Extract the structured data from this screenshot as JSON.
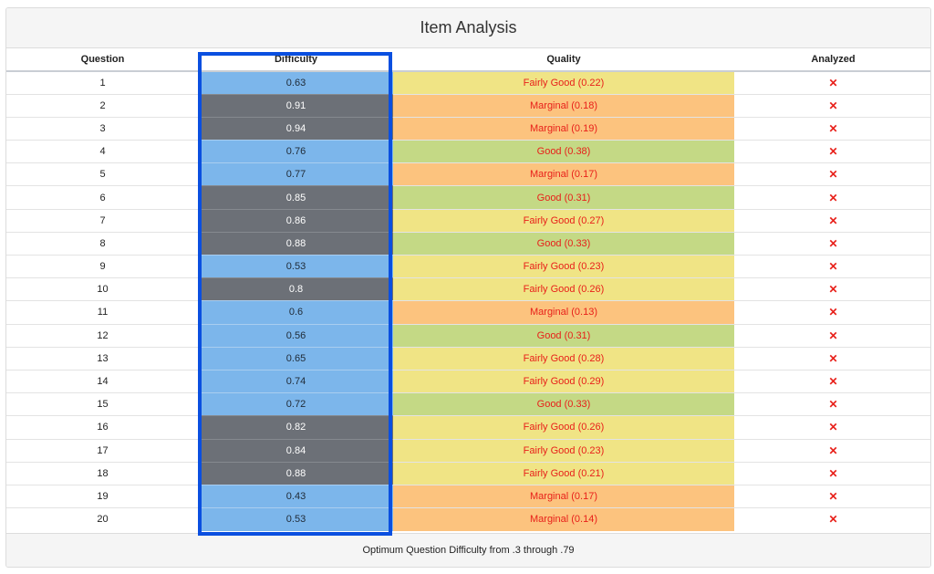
{
  "title": "Item Analysis",
  "columns": {
    "question": "Question",
    "difficulty": "Difficulty",
    "quality": "Quality",
    "analyzed": "Analyzed"
  },
  "colors": {
    "difficulty_in_range": "#7cb6eb",
    "difficulty_out_of_range": "#6c7077",
    "quality_good": "#c4d985",
    "quality_fairly_good": "#f0e485",
    "quality_marginal": "#fcc37e",
    "highlight": "#0a4fe0",
    "analyzed_mark": "#e8201a"
  },
  "rows": [
    {
      "question": "1",
      "difficulty": "0.63",
      "difficulty_band": "blue",
      "quality": "Fairly Good (0.22)",
      "quality_level": "fair",
      "analyzed": "✕"
    },
    {
      "question": "2",
      "difficulty": "0.91",
      "difficulty_band": "gray",
      "quality": "Marginal (0.18)",
      "quality_level": "marg",
      "analyzed": "✕"
    },
    {
      "question": "3",
      "difficulty": "0.94",
      "difficulty_band": "gray",
      "quality": "Marginal (0.19)",
      "quality_level": "marg",
      "analyzed": "✕"
    },
    {
      "question": "4",
      "difficulty": "0.76",
      "difficulty_band": "blue",
      "quality": "Good (0.38)",
      "quality_level": "good",
      "analyzed": "✕"
    },
    {
      "question": "5",
      "difficulty": "0.77",
      "difficulty_band": "blue",
      "quality": "Marginal (0.17)",
      "quality_level": "marg",
      "analyzed": "✕"
    },
    {
      "question": "6",
      "difficulty": "0.85",
      "difficulty_band": "gray",
      "quality": "Good (0.31)",
      "quality_level": "good",
      "analyzed": "✕"
    },
    {
      "question": "7",
      "difficulty": "0.86",
      "difficulty_band": "gray",
      "quality": "Fairly Good (0.27)",
      "quality_level": "fair",
      "analyzed": "✕"
    },
    {
      "question": "8",
      "difficulty": "0.88",
      "difficulty_band": "gray",
      "quality": "Good (0.33)",
      "quality_level": "good",
      "analyzed": "✕"
    },
    {
      "question": "9",
      "difficulty": "0.53",
      "difficulty_band": "blue",
      "quality": "Fairly Good (0.23)",
      "quality_level": "fair",
      "analyzed": "✕"
    },
    {
      "question": "10",
      "difficulty": "0.8",
      "difficulty_band": "gray",
      "quality": "Fairly Good (0.26)",
      "quality_level": "fair",
      "analyzed": "✕"
    },
    {
      "question": "11",
      "difficulty": "0.6",
      "difficulty_band": "blue",
      "quality": "Marginal (0.13)",
      "quality_level": "marg",
      "analyzed": "✕"
    },
    {
      "question": "12",
      "difficulty": "0.56",
      "difficulty_band": "blue",
      "quality": "Good (0.31)",
      "quality_level": "good",
      "analyzed": "✕"
    },
    {
      "question": "13",
      "difficulty": "0.65",
      "difficulty_band": "blue",
      "quality": "Fairly Good (0.28)",
      "quality_level": "fair",
      "analyzed": "✕"
    },
    {
      "question": "14",
      "difficulty": "0.74",
      "difficulty_band": "blue",
      "quality": "Fairly Good (0.29)",
      "quality_level": "fair",
      "analyzed": "✕"
    },
    {
      "question": "15",
      "difficulty": "0.72",
      "difficulty_band": "blue",
      "quality": "Good (0.33)",
      "quality_level": "good",
      "analyzed": "✕"
    },
    {
      "question": "16",
      "difficulty": "0.82",
      "difficulty_band": "gray",
      "quality": "Fairly Good (0.26)",
      "quality_level": "fair",
      "analyzed": "✕"
    },
    {
      "question": "17",
      "difficulty": "0.84",
      "difficulty_band": "gray",
      "quality": "Fairly Good (0.23)",
      "quality_level": "fair",
      "analyzed": "✕"
    },
    {
      "question": "18",
      "difficulty": "0.88",
      "difficulty_band": "gray",
      "quality": "Fairly Good (0.21)",
      "quality_level": "fair",
      "analyzed": "✕"
    },
    {
      "question": "19",
      "difficulty": "0.43",
      "difficulty_band": "blue",
      "quality": "Marginal (0.17)",
      "quality_level": "marg",
      "analyzed": "✕"
    },
    {
      "question": "20",
      "difficulty": "0.53",
      "difficulty_band": "blue",
      "quality": "Marginal (0.14)",
      "quality_level": "marg",
      "analyzed": "✕"
    }
  ],
  "footer": "Optimum Question Difficulty from .3 through .79"
}
